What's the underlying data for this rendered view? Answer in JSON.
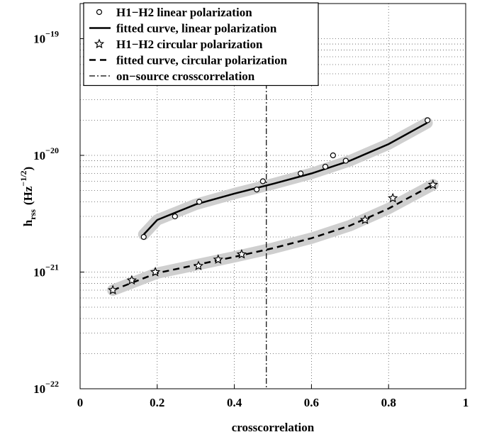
{
  "chart_data": {
    "type": "scatter",
    "xlabel": "crosscorrelation",
    "ylabel": [
      "h",
      "rss",
      "(Hz",
      "−1/2",
      ")"
    ],
    "xlim": [
      0,
      1
    ],
    "ylim": [
      1e-22,
      2e-19
    ],
    "log_y": true,
    "grid": true,
    "minor_grid": true,
    "legend": "top-left",
    "xticks": [
      0,
      0.2,
      0.4,
      0.6,
      0.8,
      1
    ],
    "yticks": [
      {
        "value": 1e-22,
        "label": "10",
        "exponent": "−22"
      },
      {
        "value": 1e-21,
        "label": "10",
        "exponent": "−21"
      },
      {
        "value": 1e-20,
        "label": "10",
        "exponent": "−20"
      },
      {
        "value": 1e-19,
        "label": "10",
        "exponent": "−19"
      }
    ],
    "series": [
      {
        "name": "H1−H2 linear polarization",
        "style": "circle",
        "color": "#000000",
        "x": [
          0.165,
          0.246,
          0.309,
          0.458,
          0.474,
          0.572,
          0.636,
          0.656,
          0.689,
          0.901
        ],
        "values": [
          2e-21,
          3e-21,
          4e-21,
          5.1e-21,
          6e-21,
          7e-21,
          8e-21,
          1e-20,
          9e-21,
          2e-20
        ]
      },
      {
        "name": "fitted curve, linear polarization",
        "style": "solid",
        "color": "#000000",
        "x": [
          0.165,
          0.2,
          0.3,
          0.4,
          0.5,
          0.6,
          0.7,
          0.8,
          0.9
        ],
        "values": [
          2.1e-21,
          2.8e-21,
          3.8e-21,
          4.7e-21,
          5.7e-21,
          7e-21,
          9e-21,
          1.25e-20,
          1.9e-20
        ]
      },
      {
        "name": "H1−H2 circular polarization",
        "style": "star",
        "color": "#000000",
        "x": [
          0.085,
          0.134,
          0.195,
          0.307,
          0.358,
          0.419,
          0.739,
          0.811,
          0.915
        ],
        "values": [
          7e-22,
          8.5e-22,
          1e-21,
          1.13e-21,
          1.28e-21,
          1.42e-21,
          2.8e-21,
          4.3e-21,
          5.6e-21
        ]
      },
      {
        "name": "fitted curve, circular polarization",
        "style": "dashed",
        "color": "#000000",
        "x": [
          0.085,
          0.2,
          0.3,
          0.4,
          0.5,
          0.6,
          0.7,
          0.8,
          0.915
        ],
        "values": [
          7e-22,
          9.8e-22,
          1.15e-21,
          1.35e-21,
          1.6e-21,
          1.95e-21,
          2.5e-21,
          3.5e-21,
          5.6e-21
        ]
      },
      {
        "name": "on−source crosscorrelation",
        "style": "dashdot",
        "color": "#000000",
        "vline_x": 0.483
      }
    ]
  }
}
